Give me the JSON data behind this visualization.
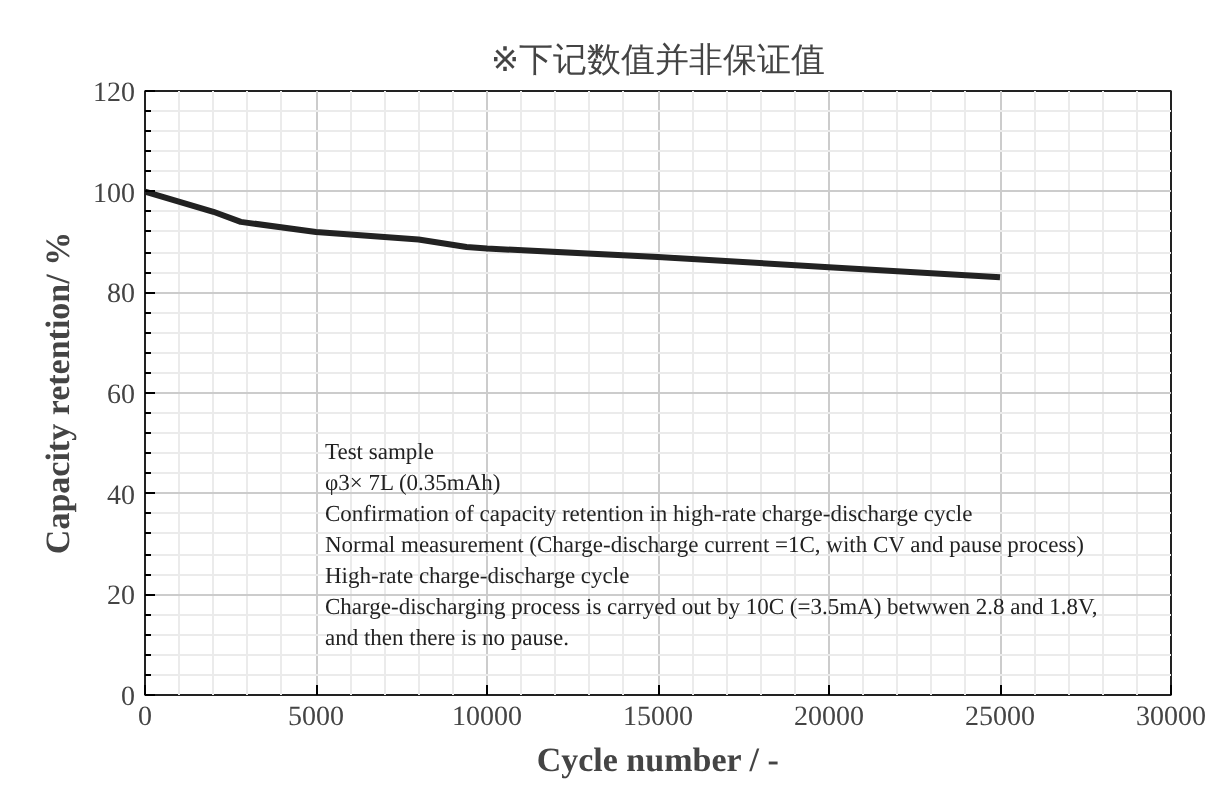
{
  "chart_data": {
    "type": "line",
    "title": "※下记数值并非保证值",
    "xlabel": "Cycle number / -",
    "ylabel": "Capacity retention/ %",
    "x": [
      0,
      2000,
      2800,
      5000,
      8000,
      9400,
      10000,
      15000,
      20000,
      25000
    ],
    "series": [
      {
        "color": "#222222",
        "values": [
          100,
          96,
          94,
          92,
          90.5,
          89,
          88.7,
          87,
          85,
          83
        ]
      }
    ],
    "xlim": [
      0,
      30000
    ],
    "ylim": [
      0,
      120
    ],
    "xticks": [
      0,
      5000,
      10000,
      15000,
      20000,
      25000,
      30000
    ],
    "yticks": [
      0,
      20,
      40,
      60,
      80,
      100,
      120
    ],
    "grid": true,
    "marker": "none",
    "line_style": "solid",
    "annotations": [
      "Test sample",
      "φ3× 7L (0.35mAh)",
      "Confirmation  of capacity retention in high-rate charge-discharge cycle",
      " Normal measurement (Charge-discharge current =1C, with CV and pause process)",
      "High-rate charge-discharge cycle",
      " Charge-discharging process is carryed out by 10C (=3.5mA) betwwen 2.8 and 1.8V,",
      " and  then there is no pause."
    ]
  }
}
